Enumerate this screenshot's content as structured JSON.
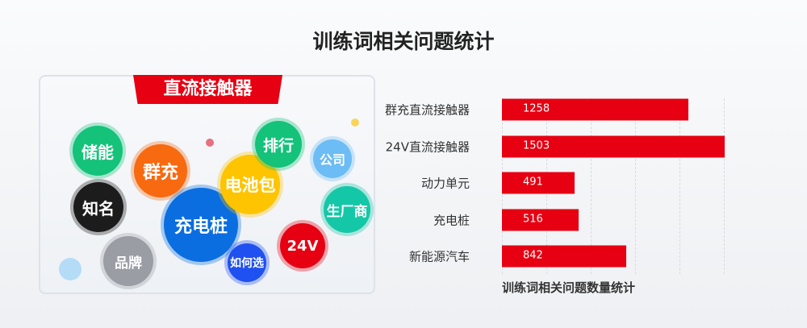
{
  "title": "训练词相关问题统计",
  "panel": {
    "banner": "直流接触器",
    "bubbles": [
      {
        "label": "储能",
        "color": "#14c27a"
      },
      {
        "label": "群充",
        "color": "#f76a10"
      },
      {
        "label": "知名",
        "color": "#1c1c1c"
      },
      {
        "label": "品牌",
        "color": "#9a9da3"
      },
      {
        "label": "充电桩",
        "color": "#0a6ee0"
      },
      {
        "label": "电池包",
        "color": "#ffc400"
      },
      {
        "label": "排行",
        "color": "#14c27a"
      },
      {
        "label": "公司",
        "color": "#6cbcf5"
      },
      {
        "label": "生厂商",
        "color": "#14c7a7"
      },
      {
        "label": "24V",
        "color": "#e60012"
      },
      {
        "label": "如何选",
        "color": "#1f50f0"
      }
    ]
  },
  "chart_data": {
    "type": "bar",
    "orientation": "horizontal",
    "categories": [
      "群充直流接触器",
      "24V直流接触器",
      "动力单元",
      "充电桩",
      "新能源汽车"
    ],
    "values": [
      1258,
      1503,
      491,
      516,
      842
    ],
    "xlabel": "训练词相关问题数量统计",
    "xlim": [
      0,
      1500
    ],
    "grid": true,
    "color": "#e60012"
  }
}
